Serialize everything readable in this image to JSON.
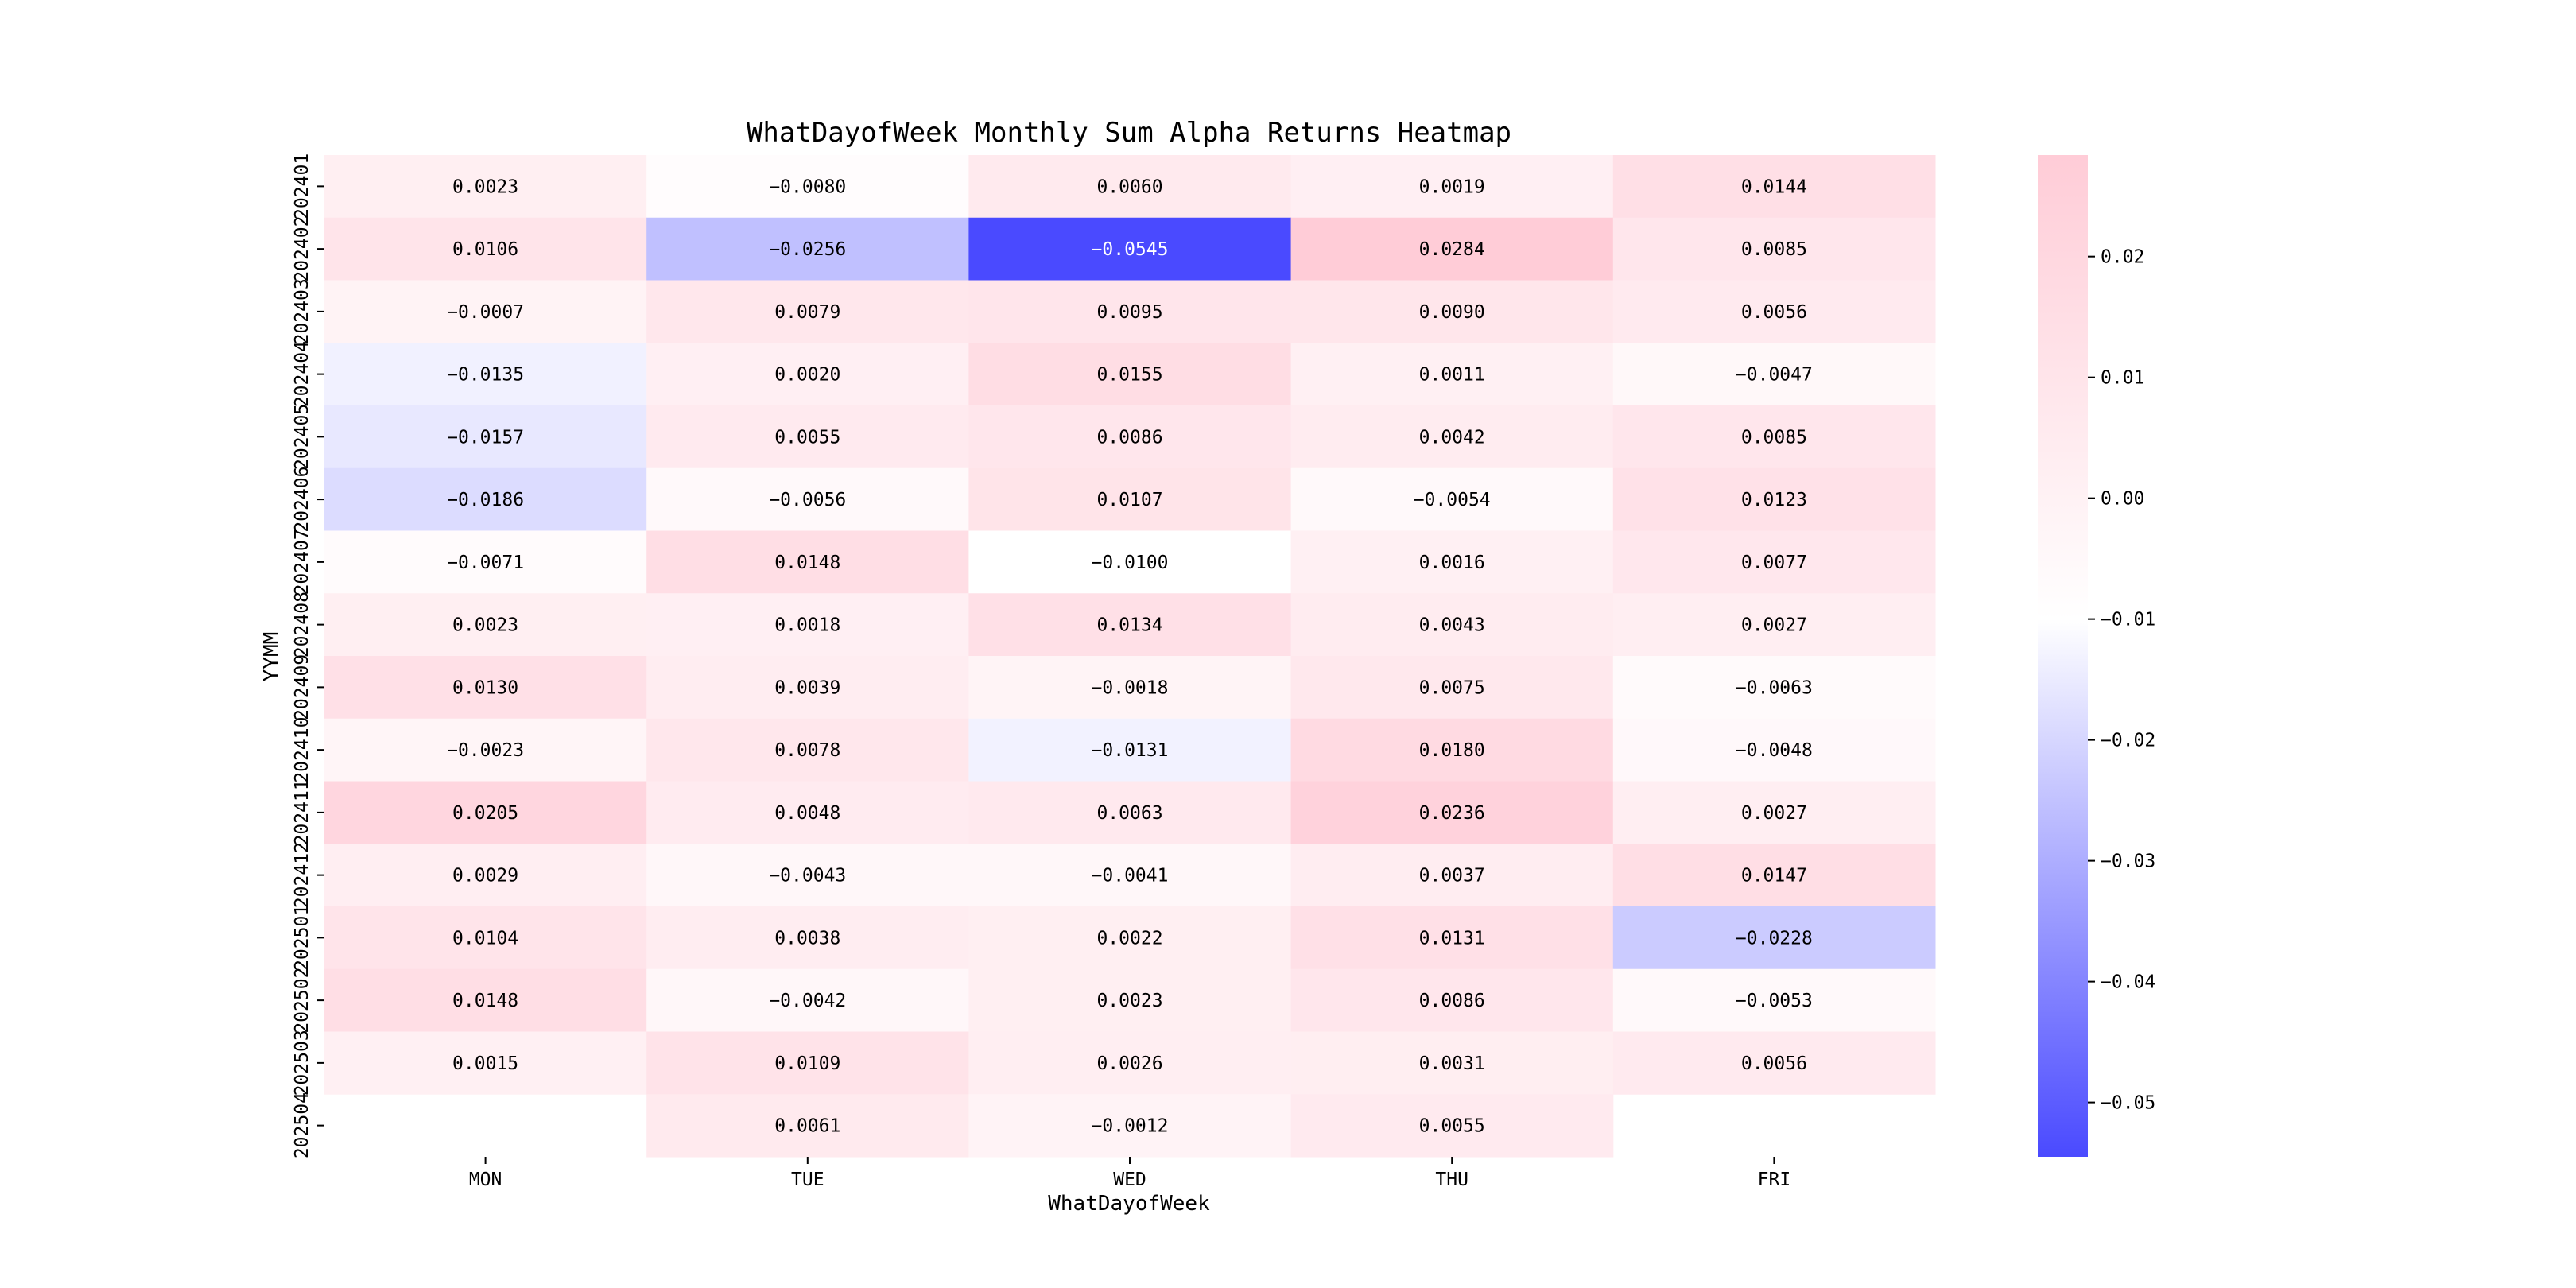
{
  "chart_data": {
    "type": "heatmap",
    "title": "WhatDayofWeek Monthly Sum Alpha Returns Heatmap",
    "xlabel": "WhatDayofWeek",
    "ylabel": "YYMM",
    "columns": [
      "MON",
      "TUE",
      "WED",
      "THU",
      "FRI"
    ],
    "rows": [
      "202401",
      "202402",
      "202403",
      "202404",
      "202405",
      "202406",
      "202407",
      "202408",
      "202409",
      "202410",
      "202411",
      "202412",
      "202501",
      "202502",
      "202503",
      "202504"
    ],
    "values": [
      [
        0.0023,
        -0.008,
        0.006,
        0.0019,
        0.0144
      ],
      [
        0.0106,
        -0.0256,
        -0.0545,
        0.0284,
        0.0085
      ],
      [
        -0.0007,
        0.0079,
        0.0095,
        0.009,
        0.0056
      ],
      [
        -0.0135,
        0.002,
        0.0155,
        0.0011,
        -0.0047
      ],
      [
        -0.0157,
        0.0055,
        0.0086,
        0.0042,
        0.0085
      ],
      [
        -0.0186,
        -0.0056,
        0.0107,
        -0.0054,
        0.0123
      ],
      [
        -0.0071,
        0.0148,
        -0.01,
        0.0016,
        0.0077
      ],
      [
        0.0023,
        0.0018,
        0.0134,
        0.0043,
        0.0027
      ],
      [
        0.013,
        0.0039,
        -0.0018,
        0.0075,
        -0.0063
      ],
      [
        -0.0023,
        0.0078,
        -0.0131,
        0.018,
        -0.0048
      ],
      [
        0.0205,
        0.0048,
        0.0063,
        0.0236,
        0.0027
      ],
      [
        0.0029,
        -0.0043,
        -0.0041,
        0.0037,
        0.0147
      ],
      [
        0.0104,
        0.0038,
        0.0022,
        0.0131,
        -0.0228
      ],
      [
        0.0148,
        -0.0042,
        0.0023,
        0.0086,
        -0.0053
      ],
      [
        0.0015,
        0.0109,
        0.0026,
        0.0031,
        0.0056
      ],
      [
        null,
        0.0061,
        -0.0012,
        0.0055,
        null
      ]
    ],
    "labels": [
      [
        "0.0023",
        "−0.0080",
        "0.0060",
        "0.0019",
        "0.0144"
      ],
      [
        "0.0106",
        "−0.0256",
        "−0.0545",
        "0.0284",
        "0.0085"
      ],
      [
        "−0.0007",
        "0.0079",
        "0.0095",
        "0.0090",
        "0.0056"
      ],
      [
        "−0.0135",
        "0.0020",
        "0.0155",
        "0.0011",
        "−0.0047"
      ],
      [
        "−0.0157",
        "0.0055",
        "0.0086",
        "0.0042",
        "0.0085"
      ],
      [
        "−0.0186",
        "−0.0056",
        "0.0107",
        "−0.0054",
        "0.0123"
      ],
      [
        "−0.0071",
        "0.0148",
        "−0.0100",
        "0.0016",
        "0.0077"
      ],
      [
        "0.0023",
        "0.0018",
        "0.0134",
        "0.0043",
        "0.0027"
      ],
      [
        "0.0130",
        "0.0039",
        "−0.0018",
        "0.0075",
        "−0.0063"
      ],
      [
        "−0.0023",
        "0.0078",
        "−0.0131",
        "0.0180",
        "−0.0048"
      ],
      [
        "0.0205",
        "0.0048",
        "0.0063",
        "0.0236",
        "0.0027"
      ],
      [
        "0.0029",
        "−0.0043",
        "−0.0041",
        "0.0037",
        "0.0147"
      ],
      [
        "0.0104",
        "0.0038",
        "0.0022",
        "0.0131",
        "−0.0228"
      ],
      [
        "0.0148",
        "−0.0042",
        "0.0023",
        "0.0086",
        "−0.0053"
      ],
      [
        "0.0015",
        "0.0109",
        "0.0026",
        "0.0031",
        "0.0056"
      ],
      [
        "",
        "0.0061",
        "−0.0012",
        "0.0055",
        ""
      ]
    ],
    "colorbar": {
      "min": -0.0545,
      "max": 0.0284,
      "center": -0.01,
      "ticks": [
        0.02,
        0.01,
        0.0,
        -0.01,
        -0.02,
        -0.03,
        -0.04,
        -0.05
      ],
      "tick_labels": [
        "0.02",
        "0.01",
        "0.00",
        "−0.01",
        "−0.02",
        "−0.03",
        "−0.04",
        "−0.05"
      ],
      "low_color": "#4a4aff",
      "mid_color": "#ffffff",
      "high_color": "#ffccd7"
    },
    "grid": false,
    "legend": "colorbar-right"
  }
}
